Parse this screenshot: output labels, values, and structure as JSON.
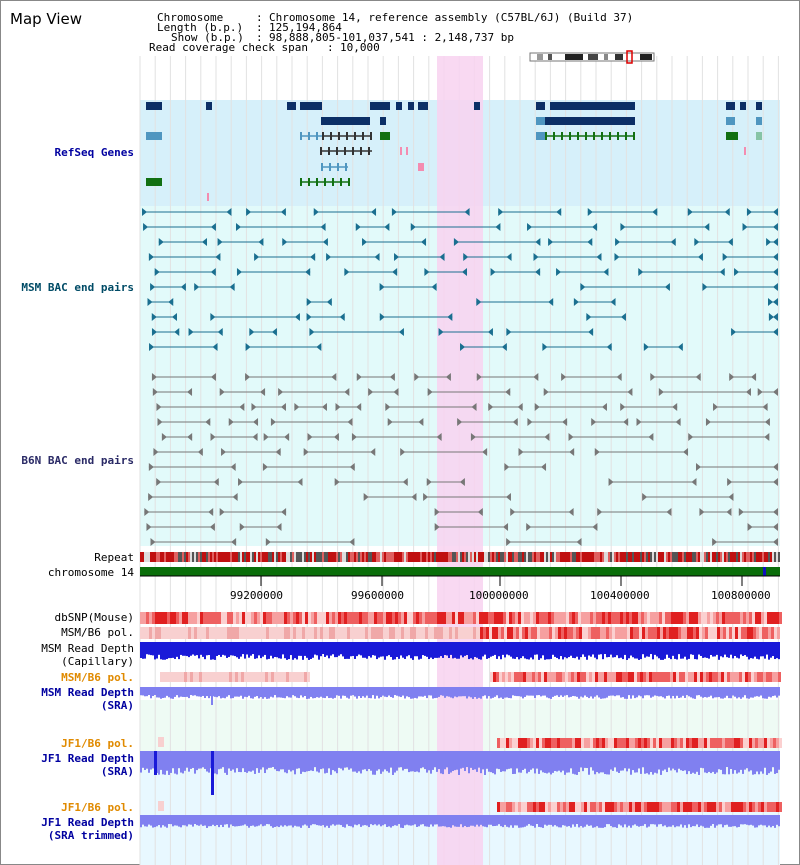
{
  "app": {
    "title": "Map View"
  },
  "info": {
    "chromosome_key": "Chromosome",
    "chromosome_value": "Chromosome 14, reference assembly (C57BL/6J) (Build 37)",
    "length_key": "Length (b.p.)",
    "length_value": "125,194,864",
    "show_key": "Show (b.p.)",
    "show_value": "98,888,805-101,037,541 : 2,148,737 bp",
    "span_key": "Read coverage check span",
    "span_value": "10,000"
  },
  "tracks": {
    "refseq": "RefSeq Genes",
    "msm_bac": "MSM BAC end pairs",
    "b6n_bac": "B6N BAC end pairs",
    "repeat": "Repeat",
    "chromosome": "chromosome 14",
    "dbsnp": "dbSNP(Mouse)",
    "msm_b6_pol": "MSM/B6 pol.",
    "msm_depth_cap_1": "MSM Read Depth",
    "msm_depth_cap_2": "(Capillary)",
    "msm_b6_pol_sra": "MSM/B6 pol.",
    "msm_depth_sra_1": "MSM Read Depth",
    "msm_depth_sra_2": "(SRA)",
    "jf1_b6_pol": "JF1/B6 pol.",
    "jf1_depth_sra_1": "JF1 Read Depth",
    "jf1_depth_sra_2": "(SRA)",
    "jf1_b6_pol_trim": "JF1/B6 pol.",
    "jf1_depth_trim_1": "JF1 Read Depth",
    "jf1_depth_trim_2": "(SRA trimmed)"
  },
  "axis": {
    "ticks": [
      "99200000",
      "99600000",
      "100000000",
      "100400000",
      "100800000"
    ]
  },
  "colors": {
    "refseq_bg": "#d6f0fa",
    "bac_bg": "#e2fafa",
    "highlight": "#f8d2f0",
    "gene_dark": "#0c2f66",
    "gene_mid": "#4f96c0",
    "gene_green": "#127012",
    "msm_line": "#1a6f90",
    "b6n_line": "#777777",
    "chrom_green": "#0a6e0a",
    "depth_blue": "#1a1ad8",
    "depth_light": "#8080f0"
  }
}
